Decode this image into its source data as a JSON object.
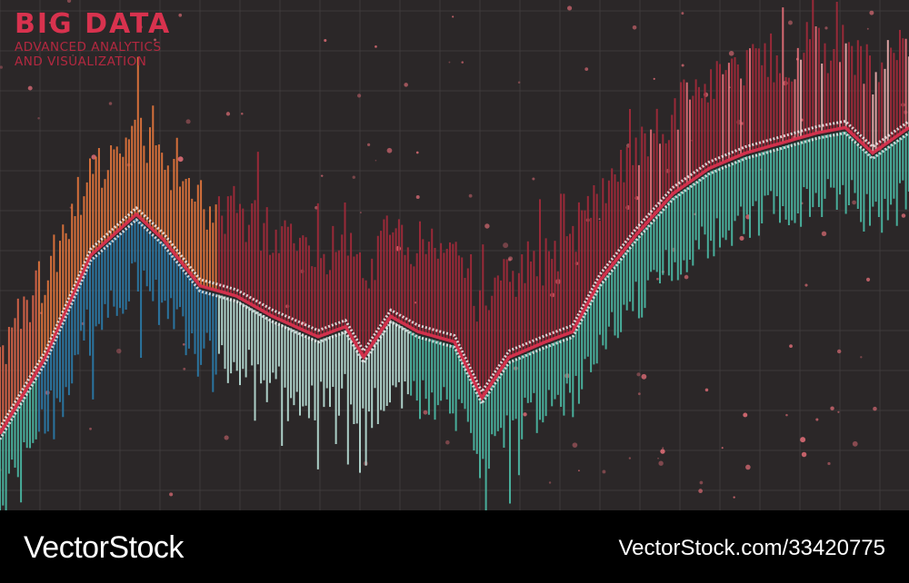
{
  "header": {
    "title": "BIG DATA",
    "subtitle_line1": "ADVANCED ANALYTICS",
    "subtitle_line2": "AND VISUALIZATION"
  },
  "footer": {
    "brand": "VectorStock",
    "image_ref": "VectorStock.com/33420775"
  },
  "colors": {
    "background": "#2b2728",
    "grid": "#4a4546",
    "title": "#d8324e",
    "orange": "#e8773c",
    "blue": "#2a7fb0",
    "teal": "#4cc1ab",
    "crimson": "#a62a3a",
    "pink": "#e8707a",
    "white": "#f0f0f0"
  },
  "chart_data": {
    "type": "bar",
    "grid": true,
    "legend": "none",
    "title": "",
    "xlabel": "",
    "ylabel": "",
    "xlim": [
      0,
      100
    ],
    "ylim": [
      0,
      100
    ],
    "trend": {
      "x": [
        0,
        5,
        10,
        15,
        18,
        22,
        26,
        30,
        35,
        38,
        40,
        43,
        46,
        50,
        53,
        56,
        60,
        63,
        66,
        70,
        74,
        78,
        82,
        86,
        90,
        93,
        96,
        100
      ],
      "y": [
        15,
        30,
        50,
        58,
        53,
        44,
        42,
        38,
        34,
        36,
        30,
        38,
        35,
        33,
        22,
        30,
        33,
        35,
        45,
        54,
        62,
        67,
        70,
        72,
        74,
        75,
        70,
        75
      ]
    },
    "segments": [
      {
        "name": "",
        "x_range": [
          0,
          4
        ],
        "upper_color": "#e0674a",
        "lower_color": "#4cc1ab"
      },
      {
        "name": "",
        "x_range": [
          4,
          24
        ],
        "upper_color": "#e8773c",
        "lower_color": "#2a7fb0"
      },
      {
        "name": "",
        "x_range": [
          24,
          45
        ],
        "upper_color": "#a62a3a",
        "lower_color": "#bfe8df"
      },
      {
        "name": "",
        "x_range": [
          45,
          100
        ],
        "upper_color": "#a62a3a",
        "lower_color": "#4cc1ab"
      }
    ]
  }
}
